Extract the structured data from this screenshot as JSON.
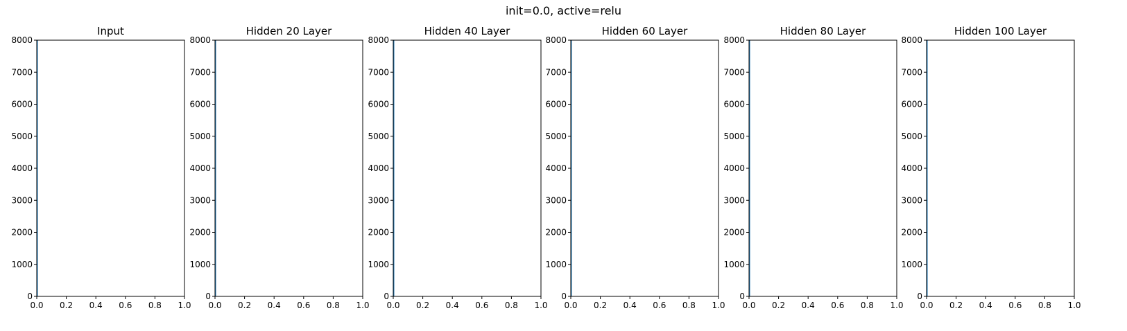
{
  "figure": {
    "suptitle": "init=0.0, active=relu",
    "colors": {
      "bar": "#1f77b4",
      "axis": "#000000",
      "background": "#ffffff"
    }
  },
  "chart_data": [
    {
      "type": "bar",
      "title": "Input",
      "xlabel": "",
      "ylabel": "",
      "xlim": [
        0,
        1
      ],
      "ylim": [
        0,
        8000
      ],
      "xticks": [
        "0.0",
        "0.2",
        "0.4",
        "0.6",
        "0.8",
        "1.0"
      ],
      "yticks": [
        "0",
        "1000",
        "2000",
        "3000",
        "4000",
        "5000",
        "6000",
        "7000",
        "8000"
      ],
      "bins": [
        {
          "x0": 0.0,
          "x1": 0.006,
          "count": 8000
        }
      ],
      "grid": false
    },
    {
      "type": "bar",
      "title": "Hidden 20 Layer",
      "xlabel": "",
      "ylabel": "",
      "xlim": [
        0,
        1
      ],
      "ylim": [
        0,
        8000
      ],
      "xticks": [
        "0.0",
        "0.2",
        "0.4",
        "0.6",
        "0.8",
        "1.0"
      ],
      "yticks": [
        "0",
        "1000",
        "2000",
        "3000",
        "4000",
        "5000",
        "6000",
        "7000",
        "8000"
      ],
      "bins": [
        {
          "x0": 0.0,
          "x1": 0.006,
          "count": 8000
        }
      ],
      "grid": false
    },
    {
      "type": "bar",
      "title": "Hidden 40 Layer",
      "xlabel": "",
      "ylabel": "",
      "xlim": [
        0,
        1
      ],
      "ylim": [
        0,
        8000
      ],
      "xticks": [
        "0.0",
        "0.2",
        "0.4",
        "0.6",
        "0.8",
        "1.0"
      ],
      "yticks": [
        "0",
        "1000",
        "2000",
        "3000",
        "4000",
        "5000",
        "6000",
        "7000",
        "8000"
      ],
      "bins": [
        {
          "x0": 0.0,
          "x1": 0.006,
          "count": 8000
        }
      ],
      "grid": false
    },
    {
      "type": "bar",
      "title": "Hidden 60 Layer",
      "xlabel": "",
      "ylabel": "",
      "xlim": [
        0,
        1
      ],
      "ylim": [
        0,
        8000
      ],
      "xticks": [
        "0.0",
        "0.2",
        "0.4",
        "0.6",
        "0.8",
        "1.0"
      ],
      "yticks": [
        "0",
        "1000",
        "2000",
        "3000",
        "4000",
        "5000",
        "6000",
        "7000",
        "8000"
      ],
      "bins": [
        {
          "x0": 0.0,
          "x1": 0.006,
          "count": 8000
        }
      ],
      "grid": false
    },
    {
      "type": "bar",
      "title": "Hidden 80 Layer",
      "xlabel": "",
      "ylabel": "",
      "xlim": [
        0,
        1
      ],
      "ylim": [
        0,
        8000
      ],
      "xticks": [
        "0.0",
        "0.2",
        "0.4",
        "0.6",
        "0.8",
        "1.0"
      ],
      "yticks": [
        "0",
        "1000",
        "2000",
        "3000",
        "4000",
        "5000",
        "6000",
        "7000",
        "8000"
      ],
      "bins": [
        {
          "x0": 0.0,
          "x1": 0.006,
          "count": 8000
        }
      ],
      "grid": false
    },
    {
      "type": "bar",
      "title": "Hidden 100 Layer",
      "xlabel": "",
      "ylabel": "",
      "xlim": [
        0,
        1
      ],
      "ylim": [
        0,
        8000
      ],
      "xticks": [
        "0.0",
        "0.2",
        "0.4",
        "0.6",
        "0.8",
        "1.0"
      ],
      "yticks": [
        "0",
        "1000",
        "2000",
        "3000",
        "4000",
        "5000",
        "6000",
        "7000",
        "8000"
      ],
      "bins": [
        {
          "x0": 0.0,
          "x1": 0.006,
          "count": 8000
        }
      ],
      "grid": false
    }
  ]
}
